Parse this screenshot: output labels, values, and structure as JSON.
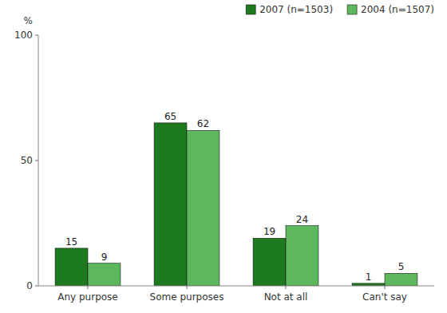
{
  "chart_data": {
    "type": "bar",
    "ylabel": "%",
    "categories": [
      "Any purpose",
      "Some purposes",
      "Not at all",
      "Can't say"
    ],
    "series": [
      {
        "name": "2007 (n=1503)",
        "color": "#1e7a1e",
        "values": [
          15,
          65,
          19,
          1
        ]
      },
      {
        "name": "2004 (n=1507)",
        "color": "#5db85d",
        "values": [
          9,
          62,
          24,
          5
        ]
      }
    ],
    "ylim": [
      0,
      100
    ],
    "yticks": [
      0,
      50,
      100
    ],
    "data_labels": true,
    "legend": "upper-right",
    "grid": false
  }
}
